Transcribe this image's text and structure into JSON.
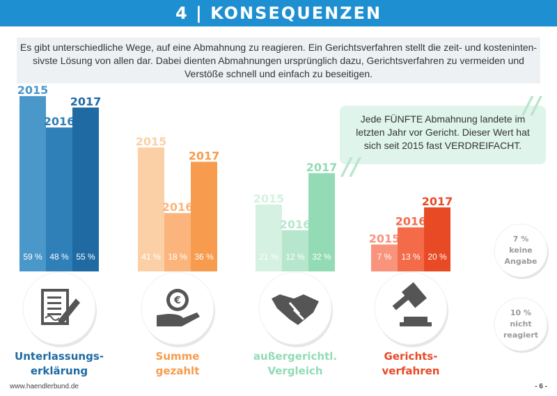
{
  "header": {
    "title": "4 | KONSEQUENZEN"
  },
  "intro": "Es gibt unterschiedliche Wege, auf eine Abmahnung zu reagieren. Ein Gerichtsverfahren stellt die zeit- und kosteninten- sivste Lösung von allen dar. Dabei dienten Abmahnungen ursprünglich dazu, Gerichtsverfahren zu vermeiden und Verstöße schnell und einfach zu beseitigen.",
  "callout": "Jede FÜNFTE Abmahnung landete im letzten Jahr vor Gericht. Dieser Wert hat sich seit 2015 fast VERDREIFACHT.",
  "footer": {
    "url": "www.haendlerbund.de",
    "page": "- 6 -"
  },
  "side_stats": [
    {
      "value": "7 %",
      "label_line1": "keine",
      "label_line2": "Angabe"
    },
    {
      "value": "10 %",
      "label_line1": "nicht",
      "label_line2": "reagiert"
    }
  ],
  "chart_data": {
    "type": "bar",
    "categories": [
      "Unterlassungs-erklärung",
      "Summe gezahlt",
      "außergerichtl. Vergleich",
      "Gerichts-verfahren"
    ],
    "category_lines": [
      [
        "Unterlassungs-",
        "erklärung"
      ],
      [
        "Summe",
        "gezahlt"
      ],
      [
        "außergerichtl.",
        "Vergleich"
      ],
      [
        "Gerichts-",
        "verfahren"
      ]
    ],
    "icons": [
      "document-signature-icon",
      "euro-coin-hand-icon",
      "handshake-icon",
      "gavel-icon"
    ],
    "series": [
      {
        "name": "2015",
        "values": [
          59,
          41,
          21,
          7
        ],
        "labels": [
          "59 %",
          "41 %",
          "21 %",
          "7 %"
        ]
      },
      {
        "name": "2016",
        "values": [
          48,
          18,
          12,
          13
        ],
        "labels": [
          "48 %",
          "18 %",
          "12 %",
          "13 %"
        ]
      },
      {
        "name": "2017",
        "values": [
          55,
          36,
          32,
          20
        ],
        "labels": [
          "55 %",
          "36 %",
          "32 %",
          "20 %"
        ]
      }
    ],
    "colors": [
      [
        "#4a97c9",
        "#2f7fb8",
        "#1f6aa3"
      ],
      [
        "#fcd0a7",
        "#fbb57c",
        "#f79c4e"
      ],
      [
        "#d4f1e1",
        "#b6e7cd",
        "#92dbb5"
      ],
      [
        "#f9937c",
        "#f46b4a",
        "#e94a26"
      ]
    ],
    "year_label_colors": [
      [
        "#4a97c9",
        "#2f7fb8",
        "#1f6aa3"
      ],
      [
        "#fcd0a7",
        "#fbb57c",
        "#f79c4e"
      ],
      [
        "#d4f1e1",
        "#b6e7cd",
        "#92dbb5"
      ],
      [
        "#f9937c",
        "#f46b4a",
        "#e94a26"
      ]
    ],
    "category_colors": [
      "#1f6aa3",
      "#f79c4e",
      "#92dbb5",
      "#e94a26"
    ],
    "ylim": [
      0,
      60
    ],
    "title": "",
    "xlabel": "",
    "ylabel": ""
  }
}
